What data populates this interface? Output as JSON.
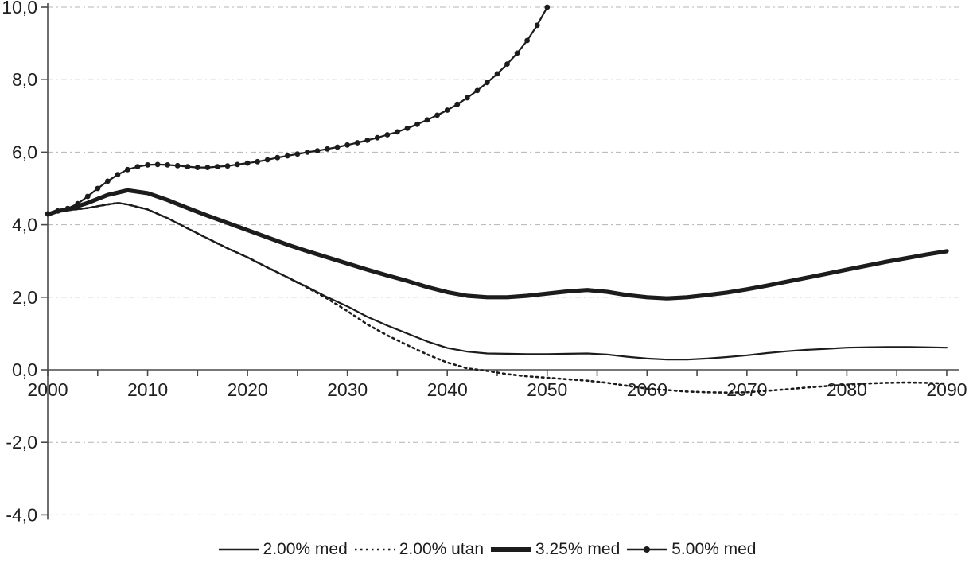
{
  "chart_data": {
    "type": "line",
    "title": "",
    "xlabel": "",
    "ylabel": "",
    "x_axis": {
      "range": [
        2000,
        2090
      ],
      "minor_tick_step_years": 5,
      "ticks": [
        {
          "value": 2000,
          "label": "2000"
        },
        {
          "value": 2010,
          "label": "2010"
        },
        {
          "value": 2020,
          "label": "2020"
        },
        {
          "value": 2030,
          "label": "2030"
        },
        {
          "value": 2040,
          "label": "2040"
        },
        {
          "value": 2050,
          "label": "2050"
        },
        {
          "value": 2060,
          "label": "2060"
        },
        {
          "value": 2070,
          "label": "2070"
        },
        {
          "value": 2080,
          "label": "2080"
        },
        {
          "value": 2090,
          "label": "2090"
        }
      ]
    },
    "y_axis": {
      "range": [
        -4,
        10
      ],
      "ticks": [
        {
          "value": 10,
          "label": "10,0"
        },
        {
          "value": 8,
          "label": "8,0"
        },
        {
          "value": 6,
          "label": "6,0"
        },
        {
          "value": 4,
          "label": "4,0"
        },
        {
          "value": 2,
          "label": "2,0"
        },
        {
          "value": 0,
          "label": "0,0"
        },
        {
          "value": -2,
          "label": "-2,0"
        },
        {
          "value": -4,
          "label": "-4,0"
        }
      ]
    },
    "grid": "horizontal-dashed",
    "legend_position": "bottom-center",
    "colors": {
      "line": "#1c1c1c",
      "axis": "#4a4a4a",
      "grid": "#b4b4b4",
      "text": "#1f1f1f",
      "background": "#ffffff"
    },
    "series": [
      {
        "name": "2.00% med",
        "style": "thin-solid",
        "color": "#1c1c1c",
        "points": [
          [
            2000,
            4.28
          ],
          [
            2001,
            4.38
          ],
          [
            2002,
            4.4
          ],
          [
            2004,
            4.46
          ],
          [
            2006,
            4.56
          ],
          [
            2007,
            4.6
          ],
          [
            2008,
            4.56
          ],
          [
            2010,
            4.42
          ],
          [
            2012,
            4.18
          ],
          [
            2014,
            3.9
          ],
          [
            2016,
            3.62
          ],
          [
            2018,
            3.35
          ],
          [
            2020,
            3.1
          ],
          [
            2022,
            2.82
          ],
          [
            2024,
            2.55
          ],
          [
            2026,
            2.28
          ],
          [
            2028,
            2.0
          ],
          [
            2030,
            1.75
          ],
          [
            2032,
            1.46
          ],
          [
            2034,
            1.22
          ],
          [
            2036,
            1.0
          ],
          [
            2038,
            0.78
          ],
          [
            2040,
            0.6
          ],
          [
            2042,
            0.5
          ],
          [
            2044,
            0.45
          ],
          [
            2046,
            0.44
          ],
          [
            2048,
            0.43
          ],
          [
            2050,
            0.43
          ],
          [
            2052,
            0.44
          ],
          [
            2054,
            0.45
          ],
          [
            2056,
            0.42
          ],
          [
            2058,
            0.36
          ],
          [
            2060,
            0.31
          ],
          [
            2062,
            0.28
          ],
          [
            2064,
            0.28
          ],
          [
            2066,
            0.31
          ],
          [
            2068,
            0.35
          ],
          [
            2070,
            0.4
          ],
          [
            2072,
            0.46
          ],
          [
            2074,
            0.51
          ],
          [
            2076,
            0.55
          ],
          [
            2078,
            0.58
          ],
          [
            2080,
            0.61
          ],
          [
            2082,
            0.62
          ],
          [
            2084,
            0.63
          ],
          [
            2086,
            0.63
          ],
          [
            2088,
            0.62
          ],
          [
            2090,
            0.61
          ]
        ]
      },
      {
        "name": "2.00% utan",
        "style": "dotted",
        "color": "#1c1c1c",
        "points": [
          [
            2000,
            4.28
          ],
          [
            2001,
            4.38
          ],
          [
            2002,
            4.4
          ],
          [
            2004,
            4.46
          ],
          [
            2006,
            4.56
          ],
          [
            2007,
            4.6
          ],
          [
            2008,
            4.56
          ],
          [
            2010,
            4.42
          ],
          [
            2012,
            4.18
          ],
          [
            2014,
            3.9
          ],
          [
            2016,
            3.62
          ],
          [
            2018,
            3.35
          ],
          [
            2020,
            3.1
          ],
          [
            2022,
            2.82
          ],
          [
            2024,
            2.55
          ],
          [
            2026,
            2.26
          ],
          [
            2028,
            1.96
          ],
          [
            2030,
            1.62
          ],
          [
            2032,
            1.25
          ],
          [
            2034,
            0.95
          ],
          [
            2036,
            0.68
          ],
          [
            2038,
            0.42
          ],
          [
            2040,
            0.2
          ],
          [
            2042,
            0.04
          ],
          [
            2044,
            -0.03
          ],
          [
            2046,
            -0.12
          ],
          [
            2048,
            -0.18
          ],
          [
            2050,
            -0.22
          ],
          [
            2052,
            -0.26
          ],
          [
            2054,
            -0.3
          ],
          [
            2056,
            -0.36
          ],
          [
            2058,
            -0.44
          ],
          [
            2060,
            -0.52
          ],
          [
            2062,
            -0.56
          ],
          [
            2064,
            -0.6
          ],
          [
            2066,
            -0.62
          ],
          [
            2068,
            -0.63
          ],
          [
            2070,
            -0.62
          ],
          [
            2072,
            -0.58
          ],
          [
            2074,
            -0.54
          ],
          [
            2076,
            -0.49
          ],
          [
            2078,
            -0.45
          ],
          [
            2080,
            -0.41
          ],
          [
            2082,
            -0.38
          ],
          [
            2084,
            -0.36
          ],
          [
            2086,
            -0.35
          ],
          [
            2088,
            -0.36
          ],
          [
            2090,
            -0.38
          ]
        ]
      },
      {
        "name": "3.25% med",
        "style": "thick-solid",
        "color": "#1c1c1c",
        "points": [
          [
            2000,
            4.28
          ],
          [
            2001,
            4.38
          ],
          [
            2002,
            4.42
          ],
          [
            2004,
            4.6
          ],
          [
            2006,
            4.82
          ],
          [
            2008,
            4.95
          ],
          [
            2010,
            4.87
          ],
          [
            2012,
            4.68
          ],
          [
            2014,
            4.46
          ],
          [
            2016,
            4.25
          ],
          [
            2018,
            4.05
          ],
          [
            2020,
            3.85
          ],
          [
            2022,
            3.65
          ],
          [
            2024,
            3.45
          ],
          [
            2026,
            3.27
          ],
          [
            2028,
            3.1
          ],
          [
            2030,
            2.93
          ],
          [
            2032,
            2.76
          ],
          [
            2034,
            2.6
          ],
          [
            2036,
            2.45
          ],
          [
            2038,
            2.28
          ],
          [
            2040,
            2.14
          ],
          [
            2042,
            2.04
          ],
          [
            2044,
            2.0
          ],
          [
            2046,
            2.0
          ],
          [
            2048,
            2.04
          ],
          [
            2050,
            2.1
          ],
          [
            2052,
            2.16
          ],
          [
            2054,
            2.2
          ],
          [
            2056,
            2.15
          ],
          [
            2058,
            2.06
          ],
          [
            2060,
            2.0
          ],
          [
            2062,
            1.97
          ],
          [
            2064,
            2.0
          ],
          [
            2066,
            2.06
          ],
          [
            2068,
            2.13
          ],
          [
            2070,
            2.22
          ],
          [
            2072,
            2.32
          ],
          [
            2074,
            2.43
          ],
          [
            2076,
            2.54
          ],
          [
            2078,
            2.65
          ],
          [
            2080,
            2.76
          ],
          [
            2082,
            2.87
          ],
          [
            2084,
            2.98
          ],
          [
            2086,
            3.08
          ],
          [
            2088,
            3.18
          ],
          [
            2090,
            3.27
          ]
        ]
      },
      {
        "name": "5.00% med",
        "style": "line-with-dot-markers",
        "color": "#1c1c1c",
        "points": [
          [
            2000,
            4.3
          ],
          [
            2001,
            4.38
          ],
          [
            2002,
            4.45
          ],
          [
            2003,
            4.58
          ],
          [
            2004,
            4.78
          ],
          [
            2005,
            5.0
          ],
          [
            2006,
            5.2
          ],
          [
            2007,
            5.38
          ],
          [
            2008,
            5.52
          ],
          [
            2009,
            5.6
          ],
          [
            2010,
            5.65
          ],
          [
            2011,
            5.66
          ],
          [
            2012,
            5.65
          ],
          [
            2013,
            5.63
          ],
          [
            2014,
            5.6
          ],
          [
            2015,
            5.58
          ],
          [
            2016,
            5.58
          ],
          [
            2017,
            5.6
          ],
          [
            2018,
            5.62
          ],
          [
            2019,
            5.66
          ],
          [
            2020,
            5.7
          ],
          [
            2021,
            5.74
          ],
          [
            2022,
            5.79
          ],
          [
            2023,
            5.85
          ],
          [
            2024,
            5.9
          ],
          [
            2025,
            5.95
          ],
          [
            2026,
            6.0
          ],
          [
            2027,
            6.04
          ],
          [
            2028,
            6.09
          ],
          [
            2029,
            6.14
          ],
          [
            2030,
            6.2
          ],
          [
            2031,
            6.26
          ],
          [
            2032,
            6.33
          ],
          [
            2033,
            6.4
          ],
          [
            2034,
            6.48
          ],
          [
            2035,
            6.56
          ],
          [
            2036,
            6.66
          ],
          [
            2037,
            6.77
          ],
          [
            2038,
            6.89
          ],
          [
            2039,
            7.02
          ],
          [
            2040,
            7.16
          ],
          [
            2041,
            7.32
          ],
          [
            2042,
            7.5
          ],
          [
            2043,
            7.7
          ],
          [
            2044,
            7.92
          ],
          [
            2045,
            8.16
          ],
          [
            2046,
            8.43
          ],
          [
            2047,
            8.73
          ],
          [
            2048,
            9.08
          ],
          [
            2049,
            9.5
          ],
          [
            2050,
            10.0
          ]
        ]
      }
    ]
  }
}
